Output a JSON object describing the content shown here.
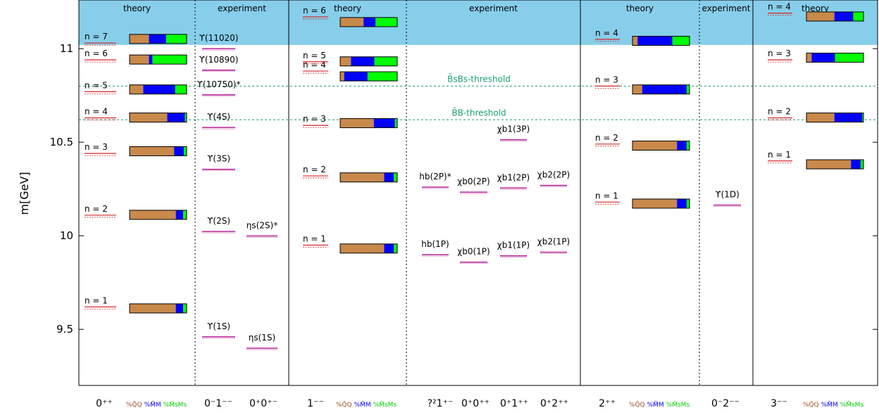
{
  "chart_data": {
    "type": "level-diagram",
    "ylabel": "m[GeV]",
    "ylim": [
      9.2,
      11.26
    ],
    "highlight_from": 11.02,
    "yticks": [
      9.5,
      10,
      10.5,
      11
    ],
    "ytick_labels": [
      "9.5",
      "10",
      "10.5",
      "11"
    ],
    "colors": {
      "highlight": "#87ceeb",
      "theory_level": "#d62728",
      "experiment_level": "#b0128f",
      "threshold": "#1a9e77",
      "qq": "#c8894a",
      "mm": "#0000ff",
      "msms": "#00ff00",
      "qq_text": "#a0522d",
      "mm_text": "#0000ff",
      "msms_text": "#00cc00"
    },
    "thresholds": [
      {
        "label": "B̄sBs-threshold",
        "value": 10.8
      },
      {
        "label": "B̄B-threshold",
        "value": 10.62
      }
    ],
    "panels": [
      {
        "id": "0pp-1mm",
        "headers": {
          "theory": "theory",
          "experiment": "experiment"
        },
        "theory_label": "0⁺⁺",
        "experiment_labels": [
          "0⁻1⁻⁻",
          "0⁺0⁺⁻"
        ],
        "theory_levels": [
          {
            "n": "n = 1",
            "mass": 9.62
          },
          {
            "n": "n = 2",
            "mass": 10.11
          },
          {
            "n": "n = 3",
            "mass": 10.44
          },
          {
            "n": "n = 4",
            "mass": 10.63
          },
          {
            "n": "n = 5",
            "mass": 10.77
          },
          {
            "n": "n = 6",
            "mass": 10.94
          },
          {
            "n": "n = 7",
            "mass": 11.03
          }
        ],
        "bars": [
          {
            "mass": 9.61,
            "qq": 0.81,
            "mm": 0.13,
            "msms": 0.06
          },
          {
            "mass": 10.11,
            "qq": 0.81,
            "mm": 0.13,
            "msms": 0.06
          },
          {
            "mass": 10.45,
            "qq": 0.78,
            "mm": 0.17,
            "msms": 0.05
          },
          {
            "mass": 10.63,
            "qq": 0.66,
            "mm": 0.31,
            "msms": 0.03
          },
          {
            "mass": 10.78,
            "qq": 0.24,
            "mm": 0.56,
            "msms": 0.2
          },
          {
            "mass": 10.94,
            "qq": 0.34,
            "mm": 0.06,
            "msms": 0.6
          },
          {
            "mass": 11.05,
            "qq": 0.34,
            "mm": 0.3,
            "msms": 0.36
          }
        ],
        "experiments": [
          {
            "label": "ϒ(1S)",
            "mass": 9.46,
            "col": 0
          },
          {
            "label": "ϒ(2S)",
            "mass": 10.023,
            "col": 0
          },
          {
            "label": "ϒ(3S)",
            "mass": 10.355,
            "col": 0
          },
          {
            "label": "ϒ(4S)",
            "mass": 10.579,
            "col": 0
          },
          {
            "label": "ϒ(10750)*",
            "mass": 10.753,
            "col": 0
          },
          {
            "label": "ϒ(10890)",
            "mass": 10.885,
            "col": 0
          },
          {
            "label": "ϒ(11020)",
            "mass": 11.0,
            "col": 0
          },
          {
            "label": "ηs(1S)",
            "mass": 9.399,
            "col": 1
          },
          {
            "label": "ηs(2S)*",
            "mass": 9.999,
            "col": 1
          }
        ]
      },
      {
        "id": "1mm-p",
        "headers": {
          "theory": "theory",
          "experiment": "experiment"
        },
        "theory_label": "1⁻⁻",
        "experiment_labels": [
          "?²1⁺⁻",
          "0⁺0⁺⁺",
          "0⁺1⁺⁺",
          "0⁺2⁺⁺"
        ],
        "theory_levels": [
          {
            "n": "n = 1",
            "mass": 9.95
          },
          {
            "n": "n = 2",
            "mass": 10.32
          },
          {
            "n": "n = 3",
            "mass": 10.59
          },
          {
            "n": "n = 4",
            "mass": 10.88
          },
          {
            "n": "n = 5",
            "mass": 10.93
          },
          {
            "n": "n = 6",
            "mass": 11.17
          }
        ],
        "bars": [
          {
            "mass": 9.93,
            "qq": 0.77,
            "mm": 0.17,
            "msms": 0.06
          },
          {
            "mass": 10.31,
            "qq": 0.77,
            "mm": 0.17,
            "msms": 0.06
          },
          {
            "mass": 10.6,
            "qq": 0.59,
            "mm": 0.37,
            "msms": 0.04
          },
          {
            "mass": 10.85,
            "qq": 0.07,
            "mm": 0.41,
            "msms": 0.52
          },
          {
            "mass": 10.93,
            "qq": 0.19,
            "mm": 0.41,
            "msms": 0.4
          },
          {
            "mass": 11.14,
            "qq": 0.41,
            "mm": 0.21,
            "msms": 0.38
          }
        ],
        "experiments": [
          {
            "label": "hb(1P)",
            "mass": 9.899,
            "col": 0
          },
          {
            "label": "hb(2P)*",
            "mass": 10.26,
            "col": 0
          },
          {
            "label": "χb0(1P)",
            "mass": 9.859,
            "col": 1
          },
          {
            "label": "χb0(2P)",
            "mass": 10.233,
            "col": 1
          },
          {
            "label": "χb1(1P)",
            "mass": 9.893,
            "col": 2
          },
          {
            "label": "χb1(2P)",
            "mass": 10.255,
            "col": 2
          },
          {
            "label": "χb1(3P)",
            "mass": 10.513,
            "col": 2
          },
          {
            "label": "χb2(1P)",
            "mass": 9.912,
            "col": 3
          },
          {
            "label": "χb2(2P)",
            "mass": 10.269,
            "col": 3
          }
        ]
      },
      {
        "id": "2pp-2mm",
        "headers": {
          "theory": "theory",
          "experiment": "experiment"
        },
        "theory_label": "2⁺⁺",
        "experiment_labels": [
          "0⁻2⁻⁻"
        ],
        "theory_levels": [
          {
            "n": "n = 1",
            "mass": 10.18
          },
          {
            "n": "n = 2",
            "mass": 10.49
          },
          {
            "n": "n = 3",
            "mass": 10.8
          },
          {
            "n": "n = 4",
            "mass": 11.05
          }
        ],
        "bars": [
          {
            "mass": 10.17,
            "qq": 0.78,
            "mm": 0.17,
            "msms": 0.05
          },
          {
            "mass": 10.48,
            "qq": 0.78,
            "mm": 0.17,
            "msms": 0.05
          },
          {
            "mass": 10.78,
            "qq": 0.17,
            "mm": 0.78,
            "msms": 0.05
          },
          {
            "mass": 11.04,
            "qq": 0.09,
            "mm": 0.61,
            "msms": 0.3
          }
        ],
        "experiments": [
          {
            "label": "ϒ(1D)",
            "mass": 10.164,
            "col": 0
          }
        ]
      },
      {
        "id": "3mm",
        "headers": {
          "theory": "theory"
        },
        "theory_label": "3⁻⁻",
        "experiment_labels": [],
        "theory_levels": [
          {
            "n": "n = 1",
            "mass": 10.4
          },
          {
            "n": "n = 2",
            "mass": 10.63
          },
          {
            "n": "n = 3",
            "mass": 10.94
          },
          {
            "n": "n = 4",
            "mass": 11.19
          }
        ],
        "bars": [
          {
            "mass": 10.38,
            "qq": 0.78,
            "mm": 0.17,
            "msms": 0.05
          },
          {
            "mass": 10.63,
            "qq": 0.49,
            "mm": 0.49,
            "msms": 0.02
          },
          {
            "mass": 10.95,
            "qq": 0.09,
            "mm": 0.41,
            "msms": 0.5
          },
          {
            "mass": 11.17,
            "qq": 0.49,
            "mm": 0.33,
            "msms": 0.18
          }
        ],
        "experiments": []
      }
    ],
    "legend_labels": {
      "qq": "%Q̄Q",
      "mm": "%M̄M",
      "msms": "%M̄sMs"
    }
  }
}
